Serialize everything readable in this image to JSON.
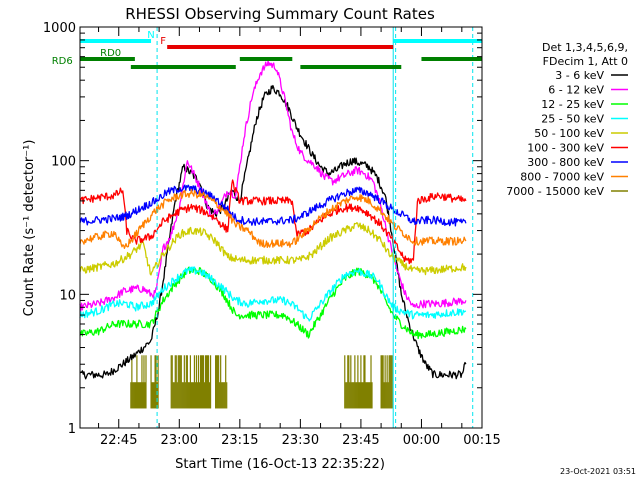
{
  "chart_data": {
    "type": "line",
    "title": "RHESSI Observing Summary Count Rates",
    "xlabel": "Start Time (16-Oct-13 22:35:22)",
    "ylabel": "Count Rate (s⁻¹ detector⁻¹)",
    "y_scale": "log",
    "xlim_minutes_after_2200": [
      35.4,
      135
    ],
    "ylim": [
      1,
      1000
    ],
    "x_ticks": [
      {
        "label": "22:45",
        "minute": 45
      },
      {
        "label": "23:00",
        "minute": 60
      },
      {
        "label": "23:15",
        "minute": 75
      },
      {
        "label": "23:30",
        "minute": 90
      },
      {
        "label": "23:45",
        "minute": 105
      },
      {
        "label": "00:00",
        "minute": 120
      },
      {
        "label": "00:15",
        "minute": 135
      }
    ],
    "y_ticks": [
      {
        "label": "1",
        "value": 1
      },
      {
        "label": "10",
        "value": 10
      },
      {
        "label": "100",
        "value": 100
      },
      {
        "label": "1000",
        "value": 1000
      }
    ],
    "legend": {
      "placement": "right",
      "header": [
        "Det 1,3,4,5,6,9,",
        "FDecim 1, Att 0"
      ]
    },
    "grid": false,
    "series": [
      {
        "name": "3 - 6 keV",
        "color": "#000000",
        "points": [
          [
            35.4,
            2.5
          ],
          [
            42,
            2.5
          ],
          [
            46,
            3.0
          ],
          [
            49,
            3.5
          ],
          [
            53,
            4.5
          ],
          [
            55,
            8
          ],
          [
            57,
            20
          ],
          [
            59,
            50
          ],
          [
            61,
            90
          ],
          [
            63,
            80
          ],
          [
            65,
            70
          ],
          [
            67,
            45
          ],
          [
            69,
            40
          ],
          [
            71,
            45
          ],
          [
            73,
            60
          ],
          [
            75,
            50
          ],
          [
            77,
            100
          ],
          [
            79,
            200
          ],
          [
            81,
            300
          ],
          [
            83,
            350
          ],
          [
            85,
            320
          ],
          [
            87,
            250
          ],
          [
            89,
            180
          ],
          [
            91,
            140
          ],
          [
            93,
            110
          ],
          [
            95,
            90
          ],
          [
            97,
            80
          ],
          [
            99,
            85
          ],
          [
            101,
            95
          ],
          [
            103,
            100
          ],
          [
            105,
            95
          ],
          [
            107,
            90
          ],
          [
            109,
            75
          ],
          [
            111,
            55
          ],
          [
            113,
            25
          ],
          [
            115,
            10
          ],
          [
            117,
            6
          ],
          [
            119,
            4
          ],
          [
            121,
            3
          ],
          [
            123,
            2.5
          ],
          [
            130,
            2.5
          ],
          [
            131,
            3
          ]
        ]
      },
      {
        "name": "6 - 12 keV",
        "color": "#ff00ff",
        "points": [
          [
            35.4,
            8
          ],
          [
            40,
            8.5
          ],
          [
            44,
            9.5
          ],
          [
            46,
            10.5
          ],
          [
            49,
            11
          ],
          [
            51,
            11
          ],
          [
            53,
            10
          ],
          [
            54,
            10
          ],
          [
            55,
            14
          ],
          [
            56,
            22
          ],
          [
            58,
            28
          ],
          [
            60,
            45
          ],
          [
            62,
            100
          ],
          [
            64,
            75
          ],
          [
            66,
            55
          ],
          [
            68,
            38
          ],
          [
            70,
            45
          ],
          [
            72,
            60
          ],
          [
            74,
            55
          ],
          [
            76,
            150
          ],
          [
            78,
            300
          ],
          [
            80,
            450
          ],
          [
            82,
            540
          ],
          [
            84,
            500
          ],
          [
            86,
            300
          ],
          [
            88,
            160
          ],
          [
            90,
            115
          ],
          [
            92,
            100
          ],
          [
            94,
            90
          ],
          [
            96,
            75
          ],
          [
            98,
            70
          ],
          [
            100,
            75
          ],
          [
            102,
            80
          ],
          [
            104,
            85
          ],
          [
            106,
            80
          ],
          [
            108,
            70
          ],
          [
            110,
            45
          ],
          [
            112,
            25
          ],
          [
            114,
            15
          ],
          [
            116,
            10
          ],
          [
            118,
            8
          ],
          [
            120,
            8.5
          ],
          [
            124,
            8.5
          ],
          [
            131,
            9
          ]
        ]
      },
      {
        "name": "12 - 25 keV",
        "color": "#00ff00",
        "points": [
          [
            35.4,
            5
          ],
          [
            40,
            5.3
          ],
          [
            44,
            6
          ],
          [
            47,
            6
          ],
          [
            49,
            6
          ],
          [
            53,
            6
          ],
          [
            56,
            9
          ],
          [
            59,
            12
          ],
          [
            62,
            15
          ],
          [
            65,
            15
          ],
          [
            68,
            13
          ],
          [
            71,
            10
          ],
          [
            74,
            7
          ],
          [
            77,
            7
          ],
          [
            80,
            7
          ],
          [
            83,
            7
          ],
          [
            86,
            7
          ],
          [
            89,
            6
          ],
          [
            92,
            5
          ],
          [
            95,
            7
          ],
          [
            98,
            10
          ],
          [
            101,
            13
          ],
          [
            104,
            15
          ],
          [
            107,
            14
          ],
          [
            109,
            12
          ],
          [
            111,
            9
          ],
          [
            113,
            7
          ],
          [
            115,
            6
          ],
          [
            118,
            5
          ],
          [
            122,
            5
          ],
          [
            131,
            5.5
          ]
        ]
      },
      {
        "name": "25 - 50 keV",
        "color": "#00ffff",
        "points": [
          [
            35.4,
            7
          ],
          [
            40,
            7.5
          ],
          [
            44,
            8.5
          ],
          [
            47,
            8.5
          ],
          [
            49,
            8
          ],
          [
            53,
            8.5
          ],
          [
            56,
            11
          ],
          [
            59,
            13
          ],
          [
            62,
            15
          ],
          [
            65,
            15
          ],
          [
            68,
            13
          ],
          [
            71,
            11
          ],
          [
            74,
            9
          ],
          [
            77,
            8.5
          ],
          [
            80,
            9
          ],
          [
            83,
            9
          ],
          [
            86,
            9
          ],
          [
            89,
            8
          ],
          [
            92,
            6.5
          ],
          [
            95,
            8.5
          ],
          [
            98,
            11
          ],
          [
            101,
            14
          ],
          [
            104,
            15
          ],
          [
            107,
            14
          ],
          [
            109,
            13
          ],
          [
            111,
            10
          ],
          [
            113,
            8
          ],
          [
            115,
            7.5
          ],
          [
            118,
            7
          ],
          [
            122,
            7
          ],
          [
            131,
            7.5
          ]
        ]
      },
      {
        "name": "50 - 100 keV",
        "color": "#cccc00",
        "points": [
          [
            35.4,
            15
          ],
          [
            40,
            16
          ],
          [
            44,
            17
          ],
          [
            48,
            20
          ],
          [
            51,
            24
          ],
          [
            53,
            14
          ],
          [
            56,
            20
          ],
          [
            60,
            28
          ],
          [
            63,
            30
          ],
          [
            66,
            29
          ],
          [
            69,
            25
          ],
          [
            72,
            19
          ],
          [
            75,
            18
          ],
          [
            80,
            18
          ],
          [
            85,
            18
          ],
          [
            90,
            18
          ],
          [
            93,
            20
          ],
          [
            97,
            26
          ],
          [
            101,
            30
          ],
          [
            104,
            33
          ],
          [
            107,
            30
          ],
          [
            110,
            25
          ],
          [
            112,
            20
          ],
          [
            115,
            17
          ],
          [
            118,
            15
          ],
          [
            122,
            15
          ],
          [
            131,
            16
          ]
        ]
      },
      {
        "name": "100 - 300 keV",
        "color": "#ff0000",
        "points": [
          [
            35.4,
            50
          ],
          [
            40,
            53
          ],
          [
            44,
            55
          ],
          [
            46,
            60
          ],
          [
            47,
            30
          ],
          [
            49,
            25
          ],
          [
            53,
            27
          ],
          [
            56,
            35
          ],
          [
            60,
            42
          ],
          [
            63,
            45
          ],
          [
            66,
            42
          ],
          [
            69,
            37
          ],
          [
            72,
            30
          ],
          [
            73,
            70
          ],
          [
            75,
            50
          ],
          [
            80,
            50
          ],
          [
            85,
            50
          ],
          [
            88,
            50
          ],
          [
            89,
            28
          ],
          [
            92,
            30
          ],
          [
            96,
            38
          ],
          [
            100,
            44
          ],
          [
            104,
            45
          ],
          [
            107,
            40
          ],
          [
            110,
            33
          ],
          [
            113,
            25
          ],
          [
            116,
            18
          ],
          [
            118,
            18
          ],
          [
            119,
            50
          ],
          [
            124,
            55
          ],
          [
            131,
            50
          ]
        ]
      },
      {
        "name": "300 - 800 keV",
        "color": "#0000ff",
        "points": [
          [
            35.4,
            35
          ],
          [
            40,
            36
          ],
          [
            44,
            37
          ],
          [
            46,
            38
          ],
          [
            48,
            40
          ],
          [
            51,
            45
          ],
          [
            54,
            50
          ],
          [
            57,
            58
          ],
          [
            60,
            62
          ],
          [
            63,
            62
          ],
          [
            66,
            58
          ],
          [
            69,
            52
          ],
          [
            72,
            43
          ],
          [
            74,
            37
          ],
          [
            77,
            35
          ],
          [
            82,
            35
          ],
          [
            88,
            36
          ],
          [
            90,
            38
          ],
          [
            93,
            43
          ],
          [
            97,
            50
          ],
          [
            101,
            57
          ],
          [
            104,
            60
          ],
          [
            107,
            57
          ],
          [
            110,
            50
          ],
          [
            113,
            43
          ],
          [
            116,
            38
          ],
          [
            118,
            35
          ],
          [
            122,
            36
          ],
          [
            131,
            34
          ]
        ]
      },
      {
        "name": "800 - 7000 keV",
        "color": "#ff8000",
        "points": [
          [
            35.4,
            25
          ],
          [
            40,
            27
          ],
          [
            44,
            29
          ],
          [
            46,
            22
          ],
          [
            48,
            25
          ],
          [
            51,
            33
          ],
          [
            54,
            42
          ],
          [
            57,
            50
          ],
          [
            60,
            55
          ],
          [
            63,
            57
          ],
          [
            66,
            55
          ],
          [
            69,
            48
          ],
          [
            72,
            40
          ],
          [
            74,
            33
          ],
          [
            77,
            30
          ],
          [
            80,
            24
          ],
          [
            85,
            24
          ],
          [
            88,
            24
          ],
          [
            90,
            27
          ],
          [
            93,
            33
          ],
          [
            97,
            42
          ],
          [
            101,
            50
          ],
          [
            104,
            54
          ],
          [
            107,
            50
          ],
          [
            110,
            42
          ],
          [
            113,
            33
          ],
          [
            116,
            28
          ],
          [
            118,
            25
          ],
          [
            122,
            25
          ],
          [
            131,
            25
          ]
        ]
      },
      {
        "name": "7000 - 15000 keV",
        "color": "#808000",
        "points": []
      }
    ],
    "background_bands": {
      "color": "#808000",
      "intervals": [
        [
          48,
          52
        ],
        [
          53,
          55
        ],
        [
          58,
          68
        ],
        [
          69,
          72
        ],
        [
          101,
          108
        ],
        [
          110,
          113
        ]
      ]
    },
    "markers": [
      {
        "label": "N",
        "color": "#00ffff",
        "intervals": [
          [
            35.4,
            53
          ],
          [
            113,
            135
          ]
        ]
      },
      {
        "label": "F",
        "color": "#e60000",
        "intervals": [
          [
            57,
            113
          ]
        ]
      },
      {
        "label": "RD0",
        "color": "#008000",
        "intervals": [
          [
            35.4,
            49
          ],
          [
            75,
            88
          ],
          [
            120,
            135
          ]
        ]
      },
      {
        "label": "RD6",
        "color": "#008000",
        "intervals": [
          [
            48,
            74
          ],
          [
            90,
            115
          ]
        ]
      }
    ],
    "saa_lines_minutes": [
      35.4,
      54.5,
      113.6,
      132.7
    ]
  },
  "footer": {
    "timestamp": "23-Oct-2021 03:51"
  }
}
